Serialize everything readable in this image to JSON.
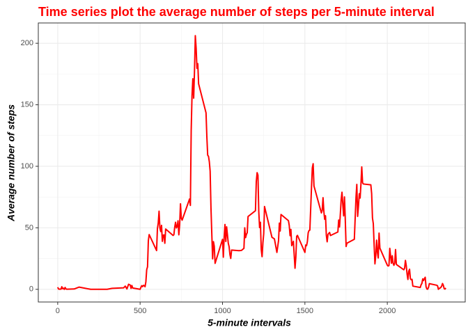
{
  "chart_data": {
    "type": "line",
    "title": "Time series plot the average number of steps per 5-minute interval",
    "x_label": "5-minute intervals",
    "y_label": "Average number of steps",
    "x": [
      0,
      5,
      10,
      15,
      20,
      25,
      30,
      35,
      40,
      45,
      50,
      55,
      100,
      130,
      200,
      230,
      300,
      330,
      400,
      410,
      420,
      430,
      440,
      445,
      450,
      455,
      500,
      505,
      510,
      515,
      520,
      525,
      530,
      535,
      540,
      545,
      550,
      555,
      600,
      605,
      610,
      615,
      620,
      625,
      630,
      635,
      640,
      645,
      650,
      655,
      700,
      705,
      710,
      715,
      720,
      725,
      730,
      735,
      740,
      745,
      750,
      755,
      800,
      805,
      810,
      815,
      820,
      825,
      830,
      835,
      840,
      845,
      850,
      855,
      900,
      905,
      910,
      915,
      920,
      925,
      930,
      935,
      940,
      945,
      950,
      955,
      1000,
      1005,
      1010,
      1015,
      1020,
      1025,
      1030,
      1035,
      1040,
      1045,
      1050,
      1055,
      1100,
      1115,
      1130,
      1135,
      1140,
      1145,
      1150,
      1155,
      1200,
      1205,
      1210,
      1215,
      1220,
      1225,
      1230,
      1235,
      1240,
      1245,
      1250,
      1255,
      1300,
      1315,
      1330,
      1340,
      1345,
      1350,
      1355,
      1400,
      1405,
      1410,
      1415,
      1420,
      1430,
      1440,
      1445,
      1450,
      1455,
      1500,
      1505,
      1510,
      1515,
      1520,
      1525,
      1530,
      1535,
      1540,
      1545,
      1550,
      1555,
      1600,
      1605,
      1610,
      1615,
      1620,
      1625,
      1630,
      1635,
      1640,
      1645,
      1650,
      1655,
      1700,
      1705,
      1710,
      1715,
      1720,
      1725,
      1730,
      1735,
      1740,
      1745,
      1750,
      1755,
      1800,
      1805,
      1810,
      1815,
      1820,
      1825,
      1830,
      1835,
      1840,
      1845,
      1850,
      1855,
      1900,
      1905,
      1910,
      1915,
      1920,
      1925,
      1930,
      1935,
      1940,
      1945,
      1950,
      1955,
      2000,
      2005,
      2010,
      2015,
      2020,
      2025,
      2030,
      2035,
      2040,
      2045,
      2050,
      2055,
      2100,
      2105,
      2110,
      2115,
      2120,
      2125,
      2130,
      2135,
      2140,
      2145,
      2150,
      2155,
      2200,
      2205,
      2210,
      2215,
      2220,
      2225,
      2230,
      2235,
      2240,
      2245,
      2250,
      2255,
      2300,
      2305,
      2310,
      2315,
      2320,
      2325,
      2330,
      2335,
      2340,
      2345,
      2350,
      2355
    ],
    "values": [
      1.7,
      0.3,
      0.1,
      0.2,
      0.1,
      2.1,
      0.5,
      0.9,
      0,
      1.5,
      0.3,
      0.1,
      0.3,
      1.8,
      0,
      0,
      0,
      0.8,
      1.2,
      2.6,
      0.3,
      4.1,
      3.5,
      0.8,
      3.1,
      1.1,
      0,
      1.6,
      3.0,
      2.2,
      3.2,
      3.0,
      2.1,
      6.1,
      16,
      18.3,
      39.5,
      44.5,
      31.5,
      49.3,
      53.8,
      63.5,
      50,
      47,
      52,
      39,
      44,
      44.2,
      37.4,
      49,
      43.8,
      44.4,
      50.5,
      54.5,
      49.9,
      51,
      55.7,
      44.3,
      52.3,
      69.5,
      57.8,
      56.2,
      73.4,
      68.2,
      129.4,
      157.5,
      171.2,
      155.4,
      177.3,
      206.2,
      195.9,
      179.6,
      183.4,
      167,
      143.5,
      124,
      109.1,
      108.1,
      103.7,
      96,
      66.2,
      45.2,
      24.8,
      38.8,
      35,
      21.1,
      40.6,
      26.1,
      42.4,
      52.7,
      38.9,
      50.8,
      44.3,
      37.4,
      34.7,
      28.3,
      25.1,
      31.9,
      31.4,
      31.6,
      33.3,
      50,
      42,
      44.6,
      46,
      59.2,
      63.9,
      87.7,
      94.8,
      92.8,
      63.4,
      50.2,
      54.5,
      32.4,
      26.5,
      37.7,
      45.1,
      67.3,
      42.3,
      41,
      30,
      39.5,
      53.8,
      47.4,
      60.8,
      55.8,
      51.9,
      43.6,
      48.7,
      35.5,
      39,
      17.1,
      26.1,
      43.1,
      43.8,
      30,
      36,
      35.5,
      38.8,
      46,
      47.8,
      48.1,
      65.3,
      82.9,
      98.7,
      102.1,
      84,
      62.1,
      64.1,
      74.5,
      63.2,
      56.9,
      59.8,
      43.9,
      38.6,
      44.7,
      45.5,
      46.2,
      43.7,
      46.6,
      56.3,
      50.7,
      61.2,
      72.7,
      78.9,
      68.9,
      59.7,
      75.1,
      56.5,
      34.8,
      37.5,
      40.7,
      58,
      74.7,
      85.3,
      59.3,
      67.8,
      77.7,
      74.2,
      85.3,
      99.5,
      86.6,
      85.6,
      84.9,
      77.8,
      58,
      53.4,
      36.3,
      20.7,
      27.4,
      40,
      30.2,
      25.5,
      45.7,
      33.5,
      19.6,
      19,
      19.3,
      33.3,
      26.8,
      21.2,
      27.3,
      21.3,
      19.5,
      21.3,
      32.3,
      20.2,
      15.9,
      17.2,
      23.5,
      19.2,
      12.5,
      8,
      14.7,
      16.3,
      8.7,
      7.8,
      8.1,
      2.6,
      1.5,
      3.7,
      4.8,
      8.5,
      7.1,
      8.7,
      9.8,
      2.2,
      0.3,
      0.1,
      1.6,
      4.6,
      3.3,
      2.8,
      0,
      0.8,
      1,
      1.6,
      2.6,
      4.7,
      3.3,
      0.6,
      0.2,
      1.1
    ],
    "color": "#ff0000",
    "title_color": "#ff0000",
    "xlim": [
      -117.75,
      2472.75
    ],
    "ylim": [
      -10.3,
      216.5
    ],
    "xticks": [
      0,
      500,
      1000,
      1500,
      2000
    ],
    "yticks": [
      0,
      50,
      100,
      150,
      200
    ],
    "x_minor_ticks": [
      250,
      750,
      1250,
      1750,
      2250
    ],
    "y_minor_ticks": [
      25,
      75,
      125,
      175
    ],
    "grid": true
  }
}
